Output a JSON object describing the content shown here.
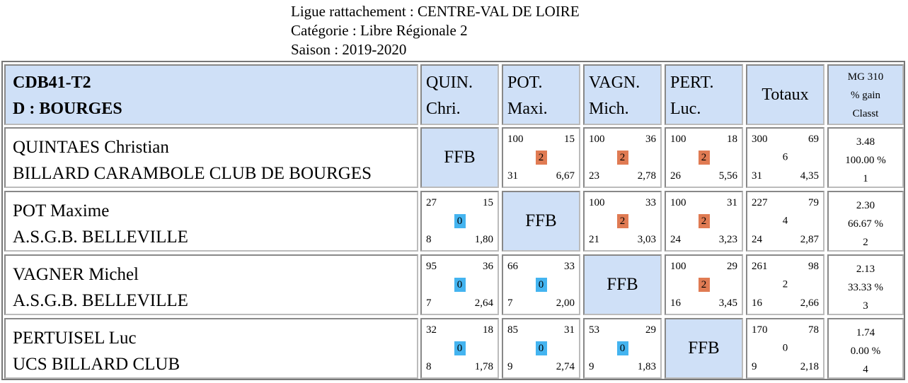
{
  "header": {
    "ligue": "Ligue rattachement : CENTRE-VAL DE LOIRE",
    "categorie": "Catégorie : Libre Régionale 2",
    "saison": "Saison : 2019-2020"
  },
  "table": {
    "title_line1": "CDB41-T2",
    "title_line2": "D : BOURGES",
    "columns": [
      {
        "line1": "QUIN.",
        "line2": "Chri."
      },
      {
        "line1": "POT.",
        "line2": "Maxi."
      },
      {
        "line1": "VAGN.",
        "line2": "Mich."
      },
      {
        "line1": "PERT.",
        "line2": "Luc."
      }
    ],
    "totals_label": "Totaux",
    "mg_header": {
      "line1": "MG 310",
      "line2": "% gain",
      "line3": "Classt"
    },
    "ffb_label": "FFB",
    "colors": {
      "header_bg": "#cfe0f7",
      "win": "#e07b53",
      "loss": "#44b4f0"
    },
    "players": [
      {
        "name": "QUINTAES Christian",
        "club": "BILLARD CARAMBOLE CLUB DE BOURGES",
        "results": [
          null,
          {
            "tl": "100",
            "tr": "15",
            "badge": "2",
            "bl": "31",
            "br": "6,67"
          },
          {
            "tl": "100",
            "tr": "36",
            "badge": "2",
            "bl": "23",
            "br": "2,78"
          },
          {
            "tl": "100",
            "tr": "18",
            "badge": "2",
            "bl": "26",
            "br": "5,56"
          }
        ],
        "totals": {
          "tl": "300",
          "tr": "69",
          "mid": "6",
          "bl": "31",
          "br": "4,35"
        },
        "mg": {
          "line1": "3.48",
          "line2": "100.00 %",
          "line3": "1"
        }
      },
      {
        "name": "POT Maxime",
        "club": "A.S.G.B. BELLEVILLE",
        "results": [
          {
            "tl": "27",
            "tr": "15",
            "badge": "0",
            "bl": "8",
            "br": "1,80"
          },
          null,
          {
            "tl": "100",
            "tr": "33",
            "badge": "2",
            "bl": "21",
            "br": "3,03"
          },
          {
            "tl": "100",
            "tr": "31",
            "badge": "2",
            "bl": "24",
            "br": "3,23"
          }
        ],
        "totals": {
          "tl": "227",
          "tr": "79",
          "mid": "4",
          "bl": "24",
          "br": "2,87"
        },
        "mg": {
          "line1": "2.30",
          "line2": "66.67 %",
          "line3": "2"
        }
      },
      {
        "name": "VAGNER Michel",
        "club": "A.S.G.B. BELLEVILLE",
        "results": [
          {
            "tl": "95",
            "tr": "36",
            "badge": "0",
            "bl": "7",
            "br": "2,64"
          },
          {
            "tl": "66",
            "tr": "33",
            "badge": "0",
            "bl": "7",
            "br": "2,00"
          },
          null,
          {
            "tl": "100",
            "tr": "29",
            "badge": "2",
            "bl": "16",
            "br": "3,45"
          }
        ],
        "totals": {
          "tl": "261",
          "tr": "98",
          "mid": "2",
          "bl": "16",
          "br": "2,66"
        },
        "mg": {
          "line1": "2.13",
          "line2": "33.33 %",
          "line3": "3"
        }
      },
      {
        "name": "PERTUISEL Luc",
        "club": "UCS BILLARD CLUB",
        "results": [
          {
            "tl": "32",
            "tr": "18",
            "badge": "0",
            "bl": "8",
            "br": "1,78"
          },
          {
            "tl": "85",
            "tr": "31",
            "badge": "0",
            "bl": "9",
            "br": "2,74"
          },
          {
            "tl": "53",
            "tr": "29",
            "badge": "0",
            "bl": "9",
            "br": "1,83"
          },
          null
        ],
        "totals": {
          "tl": "170",
          "tr": "78",
          "mid": "0",
          "bl": "9",
          "br": "2,18"
        },
        "mg": {
          "line1": "1.74",
          "line2": "0.00 %",
          "line3": "4"
        }
      }
    ]
  }
}
